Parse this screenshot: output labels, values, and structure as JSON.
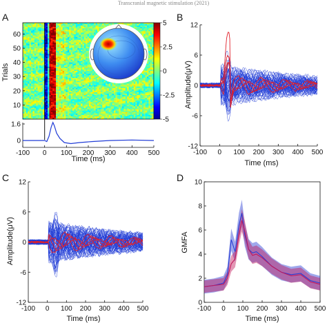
{
  "header_text": "Transcranial magnetic stimulation (2021)",
  "chart_data": [
    {
      "panel": "A",
      "type": "heatmap",
      "xlabel": "Time (ms)",
      "ylabel": "Trials",
      "x_ticks": [
        -100,
        0,
        100,
        200,
        300,
        400,
        500
      ],
      "y_ticks": [
        10,
        20,
        30,
        40,
        50,
        60
      ],
      "xlim": [
        -100,
        500
      ],
      "ylim": [
        0,
        68
      ],
      "colorbar": {
        "ticks": [
          5,
          2.5,
          0,
          -2.5,
          -5
        ],
        "range": [
          -5,
          5
        ],
        "colormap": "jet"
      },
      "trial_count": 68,
      "time_bands": [
        {
          "t": [
            -100,
            0
          ],
          "value": 0.0
        },
        {
          "t": [
            0,
            10
          ],
          "value": -4.0
        },
        {
          "t": [
            10,
            25
          ],
          "value": -1.0
        },
        {
          "t": [
            25,
            55
          ],
          "value": 4.5
        },
        {
          "t": [
            55,
            100
          ],
          "value": 0.6
        },
        {
          "t": [
            100,
            500
          ],
          "value": 0.0
        }
      ],
      "stimulus_line_at": 0,
      "average_trace": {
        "y_ticks": [
          1.6,
          0
        ],
        "x": [
          -100,
          -20,
          0,
          10,
          20,
          30,
          38,
          45,
          55,
          70,
          90,
          120,
          160,
          220,
          300,
          400,
          500
        ],
        "y": [
          0,
          0,
          0,
          -0.1,
          0.4,
          1.3,
          1.75,
          1.4,
          0.7,
          0.2,
          -0.2,
          -0.3,
          -0.2,
          -0.1,
          0,
          0.05,
          0
        ]
      },
      "topoplot": {
        "hotspot": "left-frontal",
        "hotspot_value": 4.5
      }
    },
    {
      "panel": "B",
      "type": "line",
      "xlabel": "Time (ms)",
      "ylabel": "Amplitude(μV)",
      "xlim": [
        -100,
        500
      ],
      "ylim": [
        -12,
        12
      ],
      "x_ticks": [
        -100,
        0,
        100,
        200,
        300,
        400,
        500
      ],
      "y_ticks": [
        12,
        6,
        0,
        -6,
        -12
      ],
      "series": [
        {
          "color": "#e0202a",
          "description_values": {
            "x": [
              -100,
              0,
              20,
              30,
              40,
              50,
              60,
              80,
              100,
              200,
              300,
              400,
              500
            ],
            "y": [
              0,
              0,
              0.5,
              4,
              10.5,
              4,
              -3,
              -0.5,
              0,
              0.2,
              0,
              -0.3,
              0
            ]
          }
        }
      ],
      "channel_count": 60,
      "channel_color": "#1f3bd6"
    },
    {
      "panel": "C",
      "type": "line",
      "xlabel": "Time (ms)",
      "ylabel": "Amplitude(μV)",
      "xlim": [
        -100,
        500
      ],
      "ylim": [
        -12,
        12
      ],
      "x_ticks": [
        -100,
        0,
        100,
        200,
        300,
        400,
        500
      ],
      "y_ticks": [
        12,
        6,
        0,
        -6,
        -12
      ],
      "channel_count": 60,
      "channel_color": "#1f3bd6",
      "highlight_color": "#e0202a"
    },
    {
      "panel": "D",
      "type": "area",
      "xlabel": "Time (ms)",
      "ylabel": "GMFA",
      "xlim": [
        -100,
        500
      ],
      "ylim": [
        0,
        10
      ],
      "x_ticks": [
        -100,
        0,
        100,
        200,
        300,
        400,
        500
      ],
      "y_ticks": [
        10,
        8,
        6,
        4,
        2,
        0
      ],
      "series": [
        {
          "color": "#2a3fd4",
          "x": [
            -100,
            -50,
            0,
            20,
            40,
            60,
            80,
            95,
            110,
            130,
            150,
            170,
            200,
            250,
            300,
            350,
            400,
            450,
            500
          ],
          "y": [
            1.3,
            1.4,
            1.6,
            2.3,
            5.2,
            4.2,
            6.4,
            7.4,
            5.6,
            4.4,
            4.1,
            4.2,
            3.8,
            3.0,
            2.5,
            2.3,
            2.4,
            1.8,
            1.6
          ],
          "band": 0.9
        },
        {
          "color": "#c2185b",
          "x": [
            -100,
            -50,
            0,
            20,
            40,
            60,
            80,
            95,
            110,
            130,
            150,
            170,
            200,
            250,
            300,
            350,
            400,
            450,
            500
          ],
          "y": [
            1.3,
            1.4,
            1.5,
            2.0,
            3.2,
            3.6,
            5.6,
            6.8,
            5.9,
            4.4,
            3.9,
            4.0,
            3.7,
            3.0,
            2.5,
            2.2,
            2.3,
            1.7,
            1.5
          ],
          "band": 0.8
        }
      ]
    }
  ]
}
